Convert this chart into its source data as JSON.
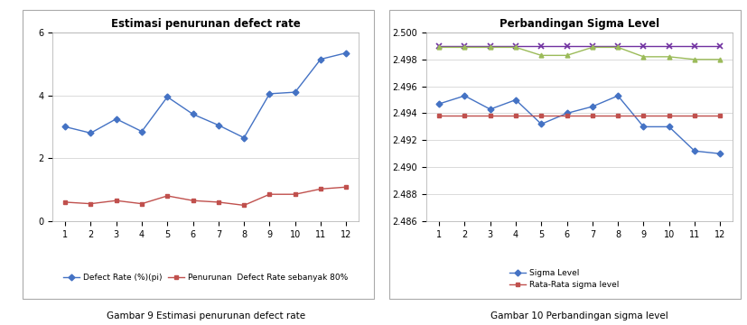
{
  "chart1": {
    "title": "Estimasi penurunan defect rate",
    "x": [
      1,
      2,
      3,
      4,
      5,
      6,
      7,
      8,
      9,
      10,
      11,
      12
    ],
    "blue_line": [
      3.0,
      2.8,
      3.25,
      2.85,
      3.95,
      3.4,
      3.05,
      2.65,
      4.05,
      4.1,
      5.15,
      5.35
    ],
    "red_line": [
      0.6,
      0.55,
      0.65,
      0.55,
      0.8,
      0.65,
      0.6,
      0.5,
      0.85,
      0.85,
      1.02,
      1.08
    ],
    "blue_color": "#4472C4",
    "red_color": "#C0504D",
    "ylim": [
      0,
      6
    ],
    "yticks": [
      0,
      2,
      4,
      6
    ],
    "legend1": "Defect Rate (%)(pi)",
    "legend2": "Penurunan  Defect Rate sebanyak 80%",
    "caption": "Gambar 9 Estimasi penurunan defect rate"
  },
  "chart2": {
    "title": "Perbandingan Sigma Level",
    "x": [
      1,
      2,
      3,
      4,
      5,
      6,
      7,
      8,
      9,
      10,
      11,
      12
    ],
    "blue_line": [
      2.4947,
      2.4953,
      2.4943,
      2.495,
      2.4932,
      2.494,
      2.4945,
      2.4953,
      2.493,
      2.493,
      2.4912,
      2.491
    ],
    "red_line": [
      2.4938,
      2.4938,
      2.4938,
      2.4938,
      2.4938,
      2.4938,
      2.4938,
      2.4938,
      2.4938,
      2.4938,
      2.4938,
      2.4938
    ],
    "purple_line": [
      2.499,
      2.499,
      2.499,
      2.499,
      2.499,
      2.499,
      2.499,
      2.499,
      2.499,
      2.499,
      2.499,
      2.499
    ],
    "green_line": [
      2.4989,
      2.4989,
      2.4989,
      2.4989,
      2.4983,
      2.4983,
      2.4989,
      2.4989,
      2.4982,
      2.4982,
      2.498,
      2.498
    ],
    "blue_color": "#4472C4",
    "red_color": "#C0504D",
    "purple_color": "#7030A0",
    "green_color": "#9BBB59",
    "ylim": [
      2.486,
      2.5
    ],
    "yticks": [
      2.486,
      2.488,
      2.49,
      2.492,
      2.494,
      2.496,
      2.498,
      2.5
    ],
    "legend1": "Sigma Level",
    "legend2": "Rata-Rata sigma level",
    "caption": "Gambar 10 Perbandingan sigma level"
  }
}
